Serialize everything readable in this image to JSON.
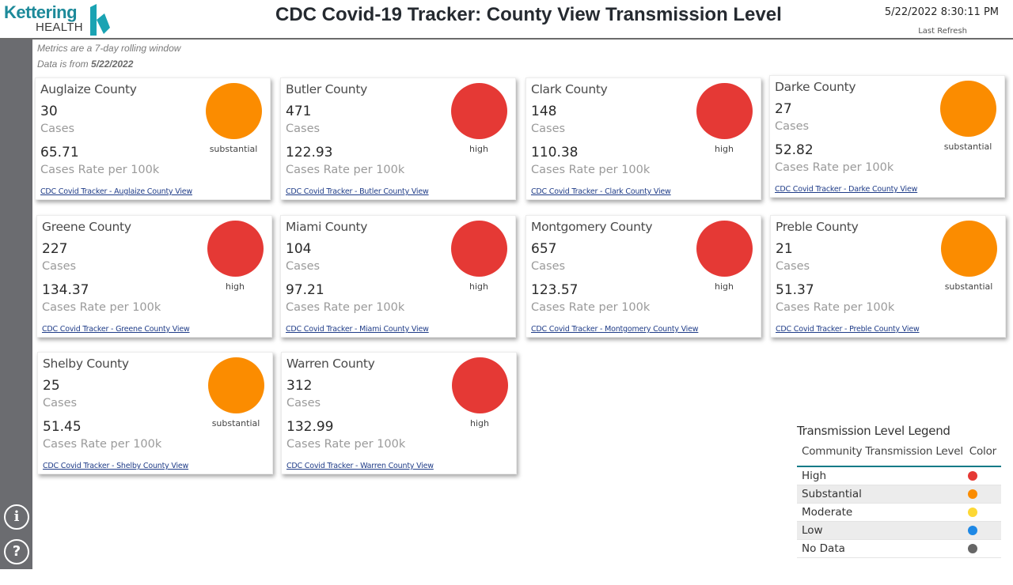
{
  "header": {
    "logo_text": "Kettering",
    "logo_sub": "HEALTH",
    "title": "CDC Covid-19 Tracker: County View Transmission Level",
    "refresh_time": "5/22/2022 8:30:11 PM",
    "refresh_label": "Last Refresh"
  },
  "notes": {
    "line1": "Metrics are a 7-day rolling window",
    "line2_prefix": "Data is from ",
    "line2_date": "5/22/2022"
  },
  "rail": {
    "info_icon": "i",
    "help_icon": "?"
  },
  "labels": {
    "cases": "Cases",
    "rate": "Cases Rate per 100k"
  },
  "colors": {
    "high": "#e53935",
    "substantial": "#fb8c00",
    "moderate": "#fdd835",
    "low": "#1e88e5",
    "no_data": "#666666",
    "brand": "#1d8a9a"
  },
  "counties": [
    {
      "name": "Auglaize County",
      "cases": "30",
      "rate": "65.71",
      "level": "substantial",
      "link": "CDC Covid Tracker - Auglaize County View"
    },
    {
      "name": "Butler County",
      "cases": "471",
      "rate": "122.93",
      "level": "high",
      "link": "CDC Covid Tracker - Butler County View"
    },
    {
      "name": "Clark County",
      "cases": "148",
      "rate": "110.38",
      "level": "high",
      "link": "CDC Covid Tracker - Clark County View"
    },
    {
      "name": "Darke County",
      "cases": "27",
      "rate": "52.82",
      "level": "substantial",
      "link": "CDC Covid Tracker - Darke County View"
    },
    {
      "name": "Greene County",
      "cases": "227",
      "rate": "134.37",
      "level": "high",
      "link": "CDC Covid Tracker - Greene County View"
    },
    {
      "name": "Miami County",
      "cases": "104",
      "rate": "97.21",
      "level": "high",
      "link": "CDC Covid Tracker - Miami County View"
    },
    {
      "name": "Montgomery County",
      "cases": "657",
      "rate": "123.57",
      "level": "high",
      "link": "CDC Covid Tracker - Montgomery County View"
    },
    {
      "name": "Preble County",
      "cases": "21",
      "rate": "51.37",
      "level": "substantial",
      "link": "CDC Covid Tracker - Preble County View"
    },
    {
      "name": "Shelby County",
      "cases": "25",
      "rate": "51.45",
      "level": "substantial",
      "link": "CDC Covid Tracker - Shelby County View"
    },
    {
      "name": "Warren County",
      "cases": "312",
      "rate": "132.99",
      "level": "high",
      "link": "CDC Covid Tracker - Warren County View"
    }
  ],
  "legend": {
    "title": "Transmission Level Legend",
    "col_level": "Community Transmission Level",
    "col_color": "Color",
    "rows": [
      {
        "label": "High",
        "color": "#e53935"
      },
      {
        "label": "Substantial",
        "color": "#fb8c00"
      },
      {
        "label": "Moderate",
        "color": "#fdd835"
      },
      {
        "label": "Low",
        "color": "#1e88e5"
      },
      {
        "label": "No Data",
        "color": "#666666"
      }
    ]
  }
}
